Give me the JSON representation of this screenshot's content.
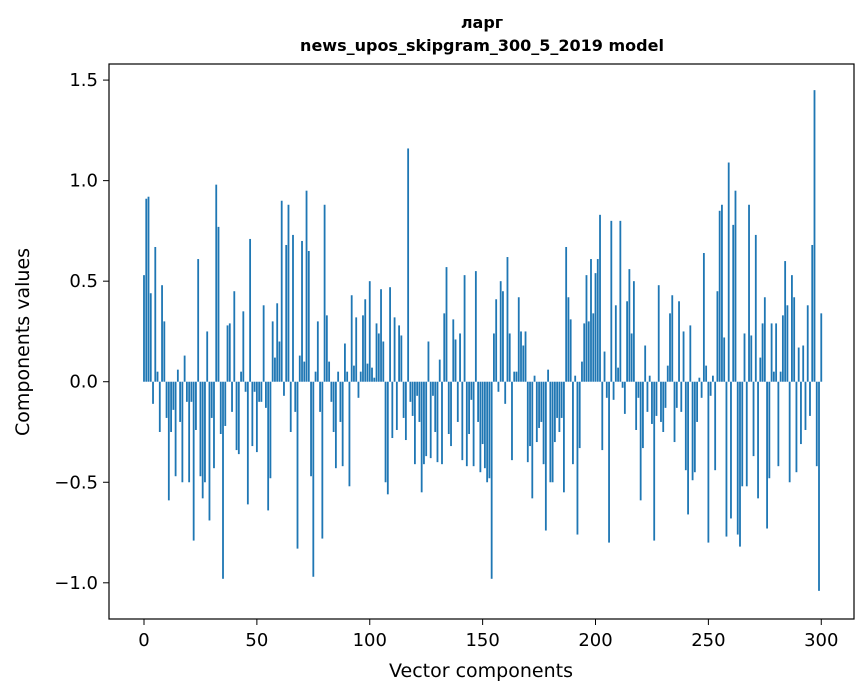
{
  "chart_data": {
    "type": "bar",
    "title": "ларг",
    "subtitle": "news_upos_skipgram_300_5_2019 model",
    "xlabel": "Vector components",
    "ylabel": "Components values",
    "xlim": [
      -15.5,
      314.5
    ],
    "ylim": [
      -1.18,
      1.58
    ],
    "xticks": [
      0,
      50,
      100,
      150,
      200,
      250,
      300
    ],
    "yticks": [
      -1.0,
      -0.5,
      0.0,
      0.5,
      1.0,
      1.5
    ],
    "ytick_labels": [
      "−1.0",
      "−0.5",
      "0.0",
      "0.5",
      "1.0",
      "1.5"
    ],
    "grid": false,
    "color": "#1f77b4",
    "values": [
      0.53,
      0.91,
      0.92,
      0.44,
      -0.11,
      0.67,
      0.05,
      -0.25,
      0.48,
      0.3,
      -0.18,
      -0.59,
      -0.25,
      -0.14,
      -0.47,
      0.06,
      -0.2,
      -0.5,
      0.13,
      -0.1,
      -0.5,
      -0.1,
      -0.79,
      -0.24,
      0.61,
      -0.47,
      -0.58,
      -0.5,
      0.25,
      -0.69,
      -0.18,
      -0.43,
      0.98,
      0.77,
      -0.26,
      -0.98,
      -0.22,
      0.28,
      0.29,
      -0.15,
      0.45,
      -0.34,
      -0.36,
      0.05,
      0.35,
      -0.05,
      -0.61,
      0.71,
      -0.32,
      -0.05,
      -0.35,
      -0.1,
      -0.1,
      0.38,
      -0.13,
      -0.64,
      -0.48,
      0.3,
      0.12,
      0.39,
      0.2,
      0.9,
      -0.07,
      0.68,
      0.88,
      -0.25,
      0.73,
      -0.15,
      -0.83,
      0.13,
      0.7,
      0.1,
      0.95,
      0.65,
      -0.47,
      -0.97,
      0.05,
      0.3,
      -0.15,
      -0.78,
      0.88,
      0.33,
      0.1,
      -0.1,
      -0.25,
      -0.43,
      0.05,
      -0.2,
      -0.42,
      0.19,
      0.05,
      -0.52,
      0.43,
      0.08,
      0.32,
      -0.08,
      0.05,
      0.33,
      0.41,
      0.09,
      0.5,
      0.07,
      0.02,
      0.29,
      0.24,
      0.46,
      0.2,
      -0.5,
      -0.56,
      0.47,
      -0.28,
      0.32,
      -0.24,
      0.28,
      0.23,
      -0.18,
      -0.29,
      1.16,
      -0.1,
      -0.17,
      -0.41,
      -0.07,
      -0.2,
      -0.55,
      -0.41,
      -0.37,
      0.2,
      -0.38,
      -0.07,
      -0.25,
      -0.4,
      0.11,
      -0.41,
      0.34,
      0.57,
      -0.26,
      -0.32,
      0.31,
      0.21,
      -0.2,
      0.24,
      -0.39,
      0.53,
      -0.42,
      -0.26,
      -0.09,
      -0.42,
      0.55,
      -0.2,
      -0.45,
      -0.31,
      -0.43,
      -0.5,
      -0.48,
      -0.98,
      0.24,
      0.41,
      -0.05,
      0.5,
      0.45,
      -0.11,
      0.62,
      0.24,
      -0.39,
      0.05,
      0.05,
      0.42,
      0.25,
      0.18,
      0.25,
      -0.4,
      -0.32,
      -0.58,
      0.03,
      -0.3,
      -0.23,
      -0.2,
      -0.41,
      -0.74,
      0.06,
      -0.5,
      -0.5,
      -0.3,
      -0.18,
      -0.25,
      -0.18,
      -0.55,
      0.67,
      0.42,
      0.31,
      -0.41,
      0.03,
      -0.76,
      -0.33,
      0.1,
      0.29,
      0.53,
      0.3,
      0.61,
      0.34,
      0.54,
      0.61,
      0.83,
      -0.34,
      0.15,
      -0.08,
      -0.8,
      0.8,
      -0.09,
      0.38,
      0.07,
      0.8,
      -0.03,
      -0.16,
      0.4,
      0.56,
      0.24,
      0.5,
      -0.24,
      -0.08,
      -0.59,
      -0.33,
      0.18,
      -0.15,
      0.03,
      -0.21,
      -0.79,
      -0.17,
      0.48,
      -0.2,
      -0.25,
      -0.13,
      0.08,
      0.34,
      0.43,
      -0.3,
      -0.13,
      0.4,
      -0.15,
      0.25,
      -0.44,
      -0.66,
      0.28,
      -0.49,
      -0.45,
      -0.2,
      0.02,
      -0.08,
      0.64,
      0.08,
      -0.8,
      -0.07,
      0.03,
      -0.44,
      0.45,
      0.85,
      0.88,
      0.22,
      -0.77,
      1.09,
      -0.68,
      0.78,
      0.95,
      -0.76,
      -0.82,
      -0.52,
      0.24,
      -0.52,
      0.88,
      0.23,
      -0.37,
      0.73,
      -0.58,
      0.12,
      0.29,
      0.42,
      -0.73,
      -0.48,
      0.29,
      0.05,
      0.29,
      -0.42,
      0.05,
      0.33,
      0.6,
      0.38,
      -0.5,
      0.53,
      0.42,
      -0.45,
      0.17,
      -0.31,
      0.18,
      -0.24,
      0.38,
      -0.17,
      0.68,
      1.45,
      -0.42,
      -1.04,
      0.34
    ]
  }
}
